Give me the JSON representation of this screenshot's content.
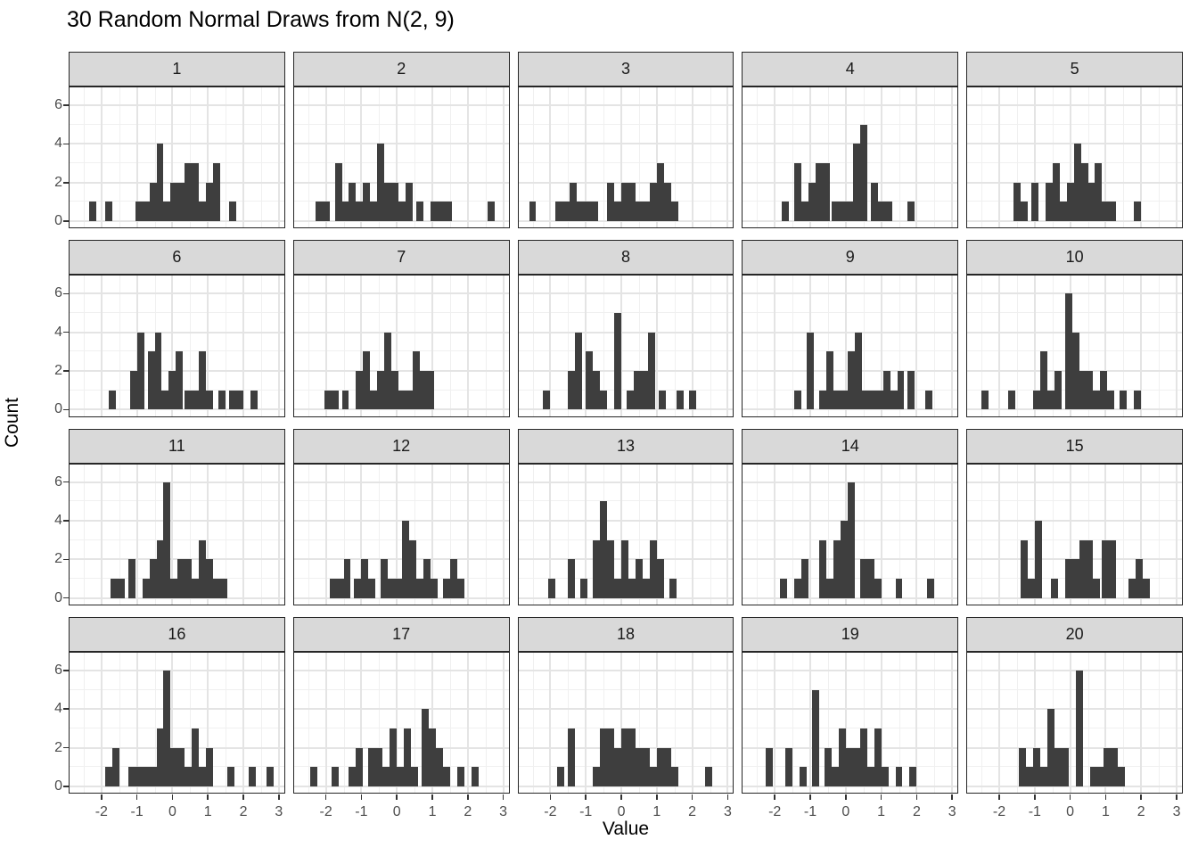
{
  "title": "30 Random Normal Draws from N(2, 9)",
  "axes": {
    "x_label": "Value",
    "y_label": "Count",
    "x_range": [
      -2.9,
      3.15
    ],
    "y_range": [
      -0.33,
      6.93
    ],
    "x_major": [
      -2,
      -1,
      0,
      1,
      2,
      3
    ],
    "x_minor": [
      -2.5,
      -1.5,
      -0.5,
      0.5,
      1.5,
      2.5
    ],
    "y_major": [
      0,
      2,
      4,
      6
    ],
    "y_minor": [
      1,
      3,
      5
    ],
    "x_tick_labels": [
      "-2",
      "-1",
      "0",
      "1",
      "2",
      "3"
    ],
    "y_tick_labels": [
      "0",
      "2",
      "4",
      "6"
    ]
  },
  "style": {
    "bar_color": "#3e3e3e",
    "strip_bg": "#d9d9d9",
    "panel_border": "#262626",
    "grid_major": "#e4e4e4",
    "grid_minor": "#f0f0f0"
  },
  "chart_data": {
    "type": "bar",
    "subtype": "faceted-histogram",
    "title": "30 Random Normal Draws from N(2, 9)",
    "xlabel": "Value",
    "ylabel": "Count",
    "xlim": [
      -2.9,
      3.15
    ],
    "ylim": [
      0,
      6
    ],
    "binwidth": 0.2,
    "grid": "on",
    "facets": [
      {
        "label": "1",
        "bars": [
          [
            -2.35,
            1
          ],
          [
            -1.9,
            1
          ],
          [
            -1.05,
            1
          ],
          [
            -0.85,
            1
          ],
          [
            -0.65,
            2
          ],
          [
            -0.45,
            4
          ],
          [
            -0.25,
            1
          ],
          [
            -0.05,
            2
          ],
          [
            0.15,
            2
          ],
          [
            0.35,
            3
          ],
          [
            0.55,
            3
          ],
          [
            0.75,
            1
          ],
          [
            0.95,
            2
          ],
          [
            1.15,
            3
          ],
          [
            1.6,
            1
          ]
        ]
      },
      {
        "label": "2",
        "bars": [
          [
            -2.3,
            1
          ],
          [
            -2.1,
            1
          ],
          [
            -1.75,
            3
          ],
          [
            -1.55,
            1
          ],
          [
            -1.35,
            2
          ],
          [
            -1.15,
            1
          ],
          [
            -0.95,
            2
          ],
          [
            -0.75,
            1
          ],
          [
            -0.55,
            4
          ],
          [
            -0.35,
            2
          ],
          [
            -0.15,
            2
          ],
          [
            0.05,
            1
          ],
          [
            0.25,
            2
          ],
          [
            0.55,
            1
          ],
          [
            0.95,
            1
          ],
          [
            1.15,
            1
          ],
          [
            1.35,
            1
          ],
          [
            2.55,
            1
          ]
        ]
      },
      {
        "label": "3",
        "bars": [
          [
            -2.6,
            1
          ],
          [
            -1.85,
            1
          ],
          [
            -1.65,
            1
          ],
          [
            -1.45,
            2
          ],
          [
            -1.25,
            1
          ],
          [
            -1.05,
            1
          ],
          [
            -0.85,
            1
          ],
          [
            -0.4,
            2
          ],
          [
            -0.2,
            1
          ],
          [
            0.0,
            2
          ],
          [
            0.2,
            2
          ],
          [
            0.4,
            1
          ],
          [
            0.6,
            1
          ],
          [
            0.8,
            2
          ],
          [
            1.0,
            3
          ],
          [
            1.2,
            2
          ],
          [
            1.4,
            1
          ]
        ]
      },
      {
        "label": "4",
        "bars": [
          [
            -1.8,
            1
          ],
          [
            -1.45,
            3
          ],
          [
            -1.25,
            1
          ],
          [
            -1.05,
            2
          ],
          [
            -0.85,
            3
          ],
          [
            -0.65,
            3
          ],
          [
            -0.4,
            1
          ],
          [
            -0.2,
            1
          ],
          [
            0.0,
            1
          ],
          [
            0.2,
            4
          ],
          [
            0.4,
            5
          ],
          [
            0.7,
            2
          ],
          [
            0.9,
            1
          ],
          [
            1.1,
            1
          ],
          [
            1.75,
            1
          ]
        ]
      },
      {
        "label": "5",
        "bars": [
          [
            -1.6,
            2
          ],
          [
            -1.4,
            1
          ],
          [
            -1.1,
            2
          ],
          [
            -0.7,
            2
          ],
          [
            -0.5,
            3
          ],
          [
            -0.3,
            1
          ],
          [
            -0.1,
            2
          ],
          [
            0.1,
            4
          ],
          [
            0.3,
            3
          ],
          [
            0.5,
            2
          ],
          [
            0.7,
            3
          ],
          [
            0.9,
            1
          ],
          [
            1.1,
            1
          ],
          [
            1.8,
            1
          ]
        ]
      },
      {
        "label": "6",
        "bars": [
          [
            -1.8,
            1
          ],
          [
            -1.2,
            2
          ],
          [
            -1.0,
            4
          ],
          [
            -0.7,
            3
          ],
          [
            -0.5,
            4
          ],
          [
            -0.3,
            1
          ],
          [
            -0.1,
            2
          ],
          [
            0.1,
            3
          ],
          [
            0.35,
            1
          ],
          [
            0.55,
            1
          ],
          [
            0.75,
            3
          ],
          [
            0.95,
            1
          ],
          [
            1.3,
            1
          ],
          [
            1.6,
            1
          ],
          [
            1.8,
            1
          ],
          [
            2.2,
            1
          ]
        ]
      },
      {
        "label": "7",
        "bars": [
          [
            -2.05,
            1
          ],
          [
            -1.85,
            1
          ],
          [
            -1.55,
            1
          ],
          [
            -1.15,
            2
          ],
          [
            -0.95,
            3
          ],
          [
            -0.75,
            1
          ],
          [
            -0.55,
            2
          ],
          [
            -0.35,
            4
          ],
          [
            -0.15,
            2
          ],
          [
            0.05,
            1
          ],
          [
            0.25,
            1
          ],
          [
            0.45,
            3
          ],
          [
            0.65,
            2
          ],
          [
            0.85,
            2
          ]
        ]
      },
      {
        "label": "8",
        "bars": [
          [
            -2.2,
            1
          ],
          [
            -1.5,
            2
          ],
          [
            -1.3,
            4
          ],
          [
            -1.0,
            3
          ],
          [
            -0.8,
            2
          ],
          [
            -0.6,
            1
          ],
          [
            -0.2,
            5
          ],
          [
            0.15,
            1
          ],
          [
            0.35,
            2
          ],
          [
            0.55,
            2
          ],
          [
            0.75,
            4
          ],
          [
            1.05,
            1
          ],
          [
            1.55,
            1
          ],
          [
            1.9,
            1
          ]
        ]
      },
      {
        "label": "9",
        "bars": [
          [
            -1.45,
            1
          ],
          [
            -1.1,
            4
          ],
          [
            -0.75,
            1
          ],
          [
            -0.55,
            3
          ],
          [
            -0.35,
            1
          ],
          [
            -0.15,
            1
          ],
          [
            0.05,
            3
          ],
          [
            0.25,
            4
          ],
          [
            0.45,
            1
          ],
          [
            0.65,
            1
          ],
          [
            0.85,
            1
          ],
          [
            1.05,
            2
          ],
          [
            1.25,
            1
          ],
          [
            1.45,
            2
          ],
          [
            1.75,
            2
          ],
          [
            2.25,
            1
          ]
        ]
      },
      {
        "label": "10",
        "bars": [
          [
            -2.5,
            1
          ],
          [
            -1.75,
            1
          ],
          [
            -1.05,
            1
          ],
          [
            -0.85,
            3
          ],
          [
            -0.65,
            1
          ],
          [
            -0.45,
            2
          ],
          [
            -0.15,
            6
          ],
          [
            0.05,
            4
          ],
          [
            0.25,
            2
          ],
          [
            0.45,
            2
          ],
          [
            0.65,
            1
          ],
          [
            0.85,
            2
          ],
          [
            1.05,
            1
          ],
          [
            1.4,
            1
          ],
          [
            1.8,
            1
          ]
        ]
      },
      {
        "label": "11",
        "bars": [
          [
            -1.75,
            1
          ],
          [
            -1.55,
            1
          ],
          [
            -1.25,
            2
          ],
          [
            -0.85,
            1
          ],
          [
            -0.65,
            2
          ],
          [
            -0.45,
            3
          ],
          [
            -0.25,
            6
          ],
          [
            -0.05,
            1
          ],
          [
            0.15,
            2
          ],
          [
            0.35,
            2
          ],
          [
            0.55,
            1
          ],
          [
            0.75,
            3
          ],
          [
            0.95,
            2
          ],
          [
            1.15,
            1
          ],
          [
            1.35,
            1
          ]
        ]
      },
      {
        "label": "12",
        "bars": [
          [
            -1.9,
            1
          ],
          [
            -1.7,
            1
          ],
          [
            -1.5,
            2
          ],
          [
            -1.2,
            1
          ],
          [
            -1.0,
            2
          ],
          [
            -0.8,
            1
          ],
          [
            -0.45,
            2
          ],
          [
            -0.25,
            1
          ],
          [
            -0.05,
            1
          ],
          [
            0.15,
            4
          ],
          [
            0.35,
            3
          ],
          [
            0.55,
            1
          ],
          [
            0.75,
            2
          ],
          [
            0.95,
            1
          ],
          [
            1.3,
            1
          ],
          [
            1.5,
            2
          ],
          [
            1.7,
            1
          ]
        ]
      },
      {
        "label": "13",
        "bars": [
          [
            -2.05,
            1
          ],
          [
            -1.5,
            2
          ],
          [
            -1.15,
            1
          ],
          [
            -0.8,
            3
          ],
          [
            -0.6,
            5
          ],
          [
            -0.4,
            3
          ],
          [
            -0.2,
            1
          ],
          [
            0.0,
            3
          ],
          [
            0.2,
            1
          ],
          [
            0.4,
            2
          ],
          [
            0.6,
            1
          ],
          [
            0.8,
            3
          ],
          [
            1.0,
            2
          ],
          [
            1.35,
            1
          ]
        ]
      },
      {
        "label": "14",
        "bars": [
          [
            -1.85,
            1
          ],
          [
            -1.45,
            1
          ],
          [
            -1.25,
            2
          ],
          [
            -0.75,
            3
          ],
          [
            -0.55,
            1
          ],
          [
            -0.35,
            3
          ],
          [
            -0.15,
            4
          ],
          [
            0.05,
            6
          ],
          [
            0.4,
            2
          ],
          [
            0.6,
            2
          ],
          [
            0.8,
            1
          ],
          [
            1.4,
            1
          ],
          [
            2.3,
            1
          ]
        ]
      },
      {
        "label": "15",
        "bars": [
          [
            -1.4,
            3
          ],
          [
            -1.2,
            1
          ],
          [
            -1.0,
            4
          ],
          [
            -0.55,
            1
          ],
          [
            -0.15,
            2
          ],
          [
            0.05,
            2
          ],
          [
            0.25,
            3
          ],
          [
            0.45,
            3
          ],
          [
            0.65,
            1
          ],
          [
            0.9,
            3
          ],
          [
            1.1,
            3
          ],
          [
            1.65,
            1
          ],
          [
            1.85,
            2
          ],
          [
            2.05,
            1
          ]
        ]
      },
      {
        "label": "16",
        "bars": [
          [
            -1.9,
            1
          ],
          [
            -1.7,
            2
          ],
          [
            -1.25,
            1
          ],
          [
            -1.05,
            1
          ],
          [
            -0.85,
            1
          ],
          [
            -0.65,
            1
          ],
          [
            -0.45,
            3
          ],
          [
            -0.25,
            6
          ],
          [
            -0.05,
            2
          ],
          [
            0.15,
            2
          ],
          [
            0.35,
            1
          ],
          [
            0.55,
            3
          ],
          [
            0.75,
            1
          ],
          [
            0.95,
            2
          ],
          [
            1.55,
            1
          ],
          [
            2.15,
            1
          ],
          [
            2.65,
            1
          ]
        ]
      },
      {
        "label": "17",
        "bars": [
          [
            -2.45,
            1
          ],
          [
            -1.85,
            1
          ],
          [
            -1.35,
            1
          ],
          [
            -1.15,
            2
          ],
          [
            -0.8,
            2
          ],
          [
            -0.6,
            2
          ],
          [
            -0.4,
            1
          ],
          [
            -0.2,
            3
          ],
          [
            0.0,
            1
          ],
          [
            0.2,
            3
          ],
          [
            0.4,
            1
          ],
          [
            0.7,
            4
          ],
          [
            0.9,
            3
          ],
          [
            1.1,
            2
          ],
          [
            1.3,
            1
          ],
          [
            1.7,
            1
          ],
          [
            2.1,
            1
          ]
        ]
      },
      {
        "label": "18",
        "bars": [
          [
            -1.8,
            1
          ],
          [
            -1.5,
            3
          ],
          [
            -0.8,
            1
          ],
          [
            -0.6,
            3
          ],
          [
            -0.4,
            3
          ],
          [
            -0.2,
            2
          ],
          [
            0.0,
            3
          ],
          [
            0.2,
            3
          ],
          [
            0.4,
            2
          ],
          [
            0.6,
            2
          ],
          [
            0.8,
            1
          ],
          [
            1.0,
            2
          ],
          [
            1.2,
            2
          ],
          [
            1.4,
            1
          ],
          [
            2.35,
            1
          ]
        ]
      },
      {
        "label": "19",
        "bars": [
          [
            -2.25,
            2
          ],
          [
            -1.7,
            2
          ],
          [
            -1.3,
            1
          ],
          [
            -0.95,
            5
          ],
          [
            -0.6,
            2
          ],
          [
            -0.4,
            1
          ],
          [
            -0.2,
            3
          ],
          [
            0.0,
            2
          ],
          [
            0.2,
            2
          ],
          [
            0.4,
            3
          ],
          [
            0.6,
            1
          ],
          [
            0.8,
            3
          ],
          [
            1.0,
            1
          ],
          [
            1.4,
            1
          ],
          [
            1.8,
            1
          ]
        ]
      },
      {
        "label": "20",
        "bars": [
          [
            -1.45,
            2
          ],
          [
            -1.25,
            1
          ],
          [
            -1.05,
            2
          ],
          [
            -0.85,
            1
          ],
          [
            -0.65,
            4
          ],
          [
            -0.45,
            2
          ],
          [
            -0.25,
            2
          ],
          [
            0.15,
            6
          ],
          [
            0.55,
            1
          ],
          [
            0.75,
            1
          ],
          [
            0.95,
            2
          ],
          [
            1.15,
            2
          ],
          [
            1.35,
            1
          ]
        ]
      }
    ]
  }
}
